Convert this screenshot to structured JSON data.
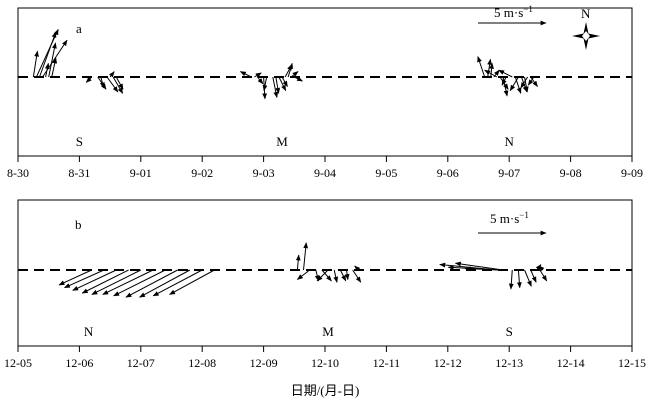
{
  "chart_data": [
    {
      "type": "vector",
      "panel_label": "a",
      "x_ticks": [
        "8-30",
        "8-31",
        "9-01",
        "9-02",
        "9-03",
        "9-04",
        "9-05",
        "9-06",
        "9-07",
        "9-08",
        "9-09"
      ],
      "scale_label": "5 m·s",
      "scale_superscript": "−1",
      "scale_value_ms": 5,
      "north_label": "N",
      "groups": [
        {
          "label": "S",
          "label_day": 1.0,
          "vectors": [
            {
              "t": 0.25,
              "u": 0.3,
              "v": 1.9
            },
            {
              "t": 0.3,
              "u": 1.6,
              "v": 3.5
            },
            {
              "t": 0.35,
              "u": 1.2,
              "v": 3.3
            },
            {
              "t": 0.4,
              "u": 1.8,
              "v": 2.7
            },
            {
              "t": 0.45,
              "u": 0.2,
              "v": 1.0
            },
            {
              "t": 0.5,
              "u": 0.5,
              "v": 2.5
            },
            {
              "t": 0.55,
              "u": 0.3,
              "v": 1.4
            },
            {
              "t": 1.2,
              "u": -0.4,
              "v": -0.4
            },
            {
              "t": 1.3,
              "u": 0.6,
              "v": -0.9
            },
            {
              "t": 1.35,
              "u": 0.2,
              "v": -0.8
            },
            {
              "t": 1.45,
              "u": 0.8,
              "v": -1.1
            },
            {
              "t": 1.5,
              "u": 0.3,
              "v": 0.4
            },
            {
              "t": 1.55,
              "u": 0.7,
              "v": -1.2
            },
            {
              "t": 1.6,
              "u": 0.5,
              "v": -0.9
            }
          ]
        },
        {
          "label": "M",
          "label_day": 4.3,
          "vectors": [
            {
              "t": 3.8,
              "u": -0.8,
              "v": 0.4
            },
            {
              "t": 3.85,
              "u": 0.5,
              "v": 0.3
            },
            {
              "t": 3.9,
              "u": 0.4,
              "v": -0.5
            },
            {
              "t": 4.0,
              "u": 0.1,
              "v": -1.6
            },
            {
              "t": 4.05,
              "u": -0.2,
              "v": -1.0
            },
            {
              "t": 4.15,
              "u": 0.3,
              "v": -1.5
            },
            {
              "t": 4.2,
              "u": 0.2,
              "v": -1.2
            },
            {
              "t": 4.25,
              "u": 0.5,
              "v": -1.0
            },
            {
              "t": 4.3,
              "u": 0.4,
              "v": -0.7
            },
            {
              "t": 4.35,
              "u": 0.5,
              "v": 0.9
            },
            {
              "t": 4.4,
              "u": 0.3,
              "v": 1.0
            },
            {
              "t": 4.45,
              "u": 0.5,
              "v": 0.4
            },
            {
              "t": 4.5,
              "u": 0.6,
              "v": -0.3
            }
          ]
        },
        {
          "label": "N",
          "label_day": 8.0,
          "vectors": [
            {
              "t": 7.6,
              "u": -0.5,
              "v": 1.5
            },
            {
              "t": 7.65,
              "u": 0.2,
              "v": 1.3
            },
            {
              "t": 7.7,
              "u": 0.1,
              "v": 1.0
            },
            {
              "t": 7.75,
              "u": 0.4,
              "v": 0.5
            },
            {
              "t": 7.8,
              "u": -0.9,
              "v": 0.5
            },
            {
              "t": 7.85,
              "u": 0.6,
              "v": -0.9
            },
            {
              "t": 7.9,
              "u": 0.3,
              "v": -1.4
            },
            {
              "t": 7.95,
              "u": -0.3,
              "v": -0.6
            },
            {
              "t": 8.05,
              "u": -1.0,
              "v": 0.5
            },
            {
              "t": 8.1,
              "u": 0.4,
              "v": -1.2
            },
            {
              "t": 8.15,
              "u": -0.6,
              "v": -1.0
            },
            {
              "t": 8.2,
              "u": 0.4,
              "v": -1.1
            },
            {
              "t": 8.25,
              "u": 0.2,
              "v": -1.1
            },
            {
              "t": 8.3,
              "u": -0.5,
              "v": -0.8
            },
            {
              "t": 8.35,
              "u": 0.5,
              "v": -0.7
            },
            {
              "t": 8.4,
              "u": -0.4,
              "v": -0.6
            }
          ]
        }
      ]
    },
    {
      "type": "vector",
      "panel_label": "b",
      "x_ticks": [
        "12-05",
        "12-06",
        "12-07",
        "12-08",
        "12-09",
        "12-10",
        "12-11",
        "12-12",
        "12-13",
        "12-14",
        "12-15"
      ],
      "x_label": "日期/(月-日)",
      "scale_label": "5 m·s",
      "scale_superscript": "−1",
      "scale_value_ms": 5,
      "groups": [
        {
          "label": "N",
          "label_day": 1.15,
          "vectors": [
            {
              "t": 1.2,
              "u": -2.4,
              "v": -1.1
            },
            {
              "t": 1.4,
              "u": -2.9,
              "v": -1.3
            },
            {
              "t": 1.6,
              "u": -3.2,
              "v": -1.5
            },
            {
              "t": 1.8,
              "u": -3.4,
              "v": -1.7
            },
            {
              "t": 2.0,
              "u": -3.6,
              "v": -1.8
            },
            {
              "t": 2.2,
              "u": -3.7,
              "v": -1.8
            },
            {
              "t": 2.4,
              "u": -3.8,
              "v": -1.9
            },
            {
              "t": 2.6,
              "u": -3.8,
              "v": -2.0
            },
            {
              "t": 2.8,
              "u": -3.7,
              "v": -2.0
            },
            {
              "t": 3.0,
              "u": -3.6,
              "v": -1.9
            },
            {
              "t": 3.2,
              "u": -3.3,
              "v": -1.8
            }
          ]
        },
        {
          "label": "M",
          "label_day": 5.05,
          "vectors": [
            {
              "t": 4.55,
              "u": 0.1,
              "v": 1.1
            },
            {
              "t": 4.65,
              "u": 0.2,
              "v": 2.0
            },
            {
              "t": 4.75,
              "u": -0.9,
              "v": -0.7
            },
            {
              "t": 4.85,
              "u": 0.2,
              "v": -0.8
            },
            {
              "t": 4.95,
              "u": 0.7,
              "v": -0.8
            },
            {
              "t": 5.05,
              "u": -0.8,
              "v": -0.8
            },
            {
              "t": 5.15,
              "u": 0.2,
              "v": -0.9
            },
            {
              "t": 5.25,
              "u": 0.4,
              "v": -0.8
            },
            {
              "t": 5.35,
              "u": 0.1,
              "v": -0.7
            },
            {
              "t": 5.45,
              "u": 0.6,
              "v": -0.9
            },
            {
              "t": 5.55,
              "u": -0.3,
              "v": 0.3
            }
          ]
        },
        {
          "label": "S",
          "label_day": 8.0,
          "vectors": [
            {
              "t": 7.8,
              "u": -4.2,
              "v": 0.4
            },
            {
              "t": 7.85,
              "u": -3.8,
              "v": 0.2
            },
            {
              "t": 7.9,
              "u": -3.5,
              "v": 0.5
            },
            {
              "t": 7.95,
              "u": -3.0,
              "v": 0.1
            },
            {
              "t": 8.05,
              "u": -0.1,
              "v": -1.4
            },
            {
              "t": 8.15,
              "u": 0.1,
              "v": -1.3
            },
            {
              "t": 8.25,
              "u": 0.5,
              "v": -1.2
            },
            {
              "t": 8.35,
              "u": 0.4,
              "v": -0.9
            },
            {
              "t": 8.45,
              "u": 0.3,
              "v": 0.4
            },
            {
              "t": 8.5,
              "u": 0.5,
              "v": -0.8
            },
            {
              "t": 8.55,
              "u": -0.3,
              "v": 0.3
            }
          ]
        }
      ]
    }
  ]
}
